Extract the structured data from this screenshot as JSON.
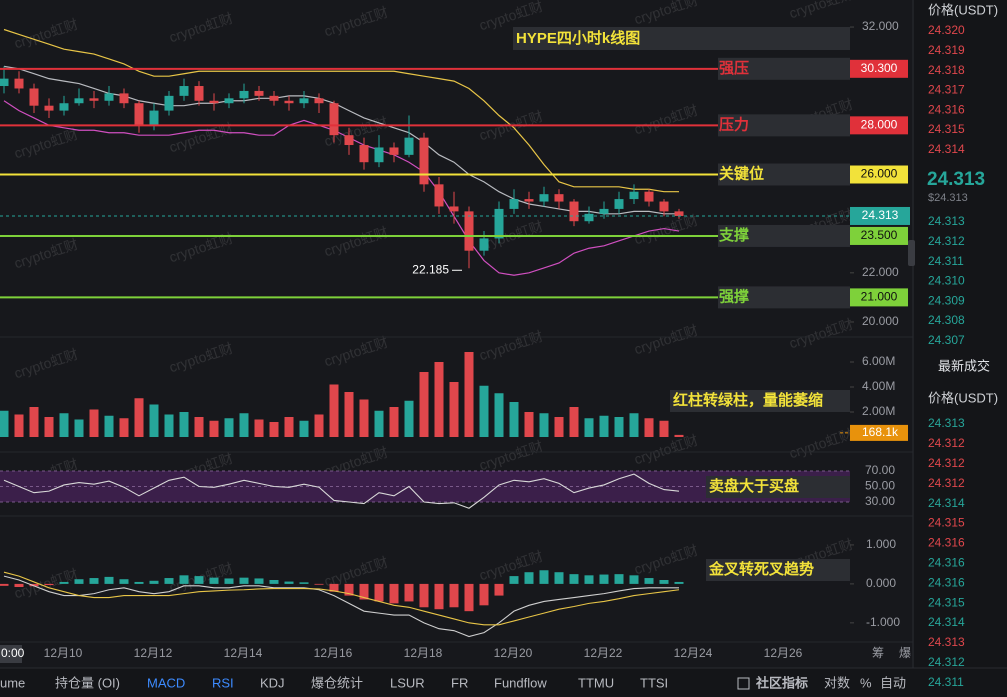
{
  "chart_data": [
    {
      "type": "candlestick",
      "title": "HYPE四小时k线图",
      "open": [
        29.6,
        29.9,
        29.5,
        28.8,
        28.6,
        28.9,
        29.1,
        29.0,
        29.3,
        28.9,
        28.0,
        28.6,
        29.2,
        29.6,
        29.0,
        28.9,
        29.1,
        29.4,
        29.2,
        29.0,
        28.9,
        29.1,
        28.9,
        27.6,
        27.2,
        26.5,
        27.1,
        26.8,
        27.5,
        25.6,
        24.7,
        24.5,
        22.9,
        23.4,
        24.6,
        25.0,
        24.9,
        25.2,
        24.9,
        24.1,
        24.4,
        24.6,
        25.0,
        25.3,
        24.9,
        24.5
      ],
      "high": [
        30.4,
        30.2,
        29.7,
        29.1,
        29.2,
        29.5,
        29.4,
        29.6,
        29.5,
        29.0,
        28.9,
        29.4,
        29.9,
        29.8,
        29.3,
        29.3,
        29.7,
        29.6,
        29.4,
        29.2,
        29.4,
        29.3,
        29.0,
        27.9,
        27.5,
        27.6,
        27.3,
        28.4,
        27.7,
        25.9,
        25.3,
        24.7,
        23.7,
        24.9,
        25.4,
        25.3,
        25.5,
        25.4,
        25.0,
        24.7,
        24.9,
        25.3,
        25.6,
        25.4,
        25.0,
        24.6
      ],
      "low": [
        29.3,
        29.3,
        28.5,
        28.3,
        28.4,
        28.8,
        28.7,
        28.8,
        28.7,
        27.7,
        27.8,
        28.4,
        29.0,
        28.8,
        28.6,
        28.7,
        28.9,
        29.0,
        28.8,
        28.6,
        28.7,
        28.5,
        27.3,
        26.8,
        26.2,
        26.3,
        26.5,
        26.7,
        25.3,
        24.4,
        24.0,
        22.185,
        22.7,
        23.2,
        24.4,
        24.6,
        24.7,
        24.6,
        23.9,
        24.0,
        24.2,
        24.4,
        24.8,
        24.7,
        24.3,
        24.2
      ],
      "close": [
        29.9,
        29.5,
        28.8,
        28.6,
        28.9,
        29.1,
        29.0,
        29.3,
        28.9,
        28.0,
        28.6,
        29.2,
        29.6,
        29.0,
        28.9,
        29.1,
        29.4,
        29.2,
        29.0,
        28.9,
        29.1,
        28.9,
        27.6,
        27.2,
        26.5,
        27.1,
        26.8,
        27.5,
        25.6,
        24.7,
        24.5,
        22.9,
        23.4,
        24.6,
        25.0,
        24.9,
        25.2,
        24.9,
        24.1,
        24.4,
        24.6,
        25.0,
        25.3,
        24.9,
        24.5,
        24.313
      ],
      "up_color": "#26a69a",
      "down_color": "#e0474c",
      "lines": [
        {
          "color": "#e8c547",
          "values": [
            31.9,
            31.7,
            31.5,
            31.3,
            31.1,
            31.0,
            30.9,
            30.7,
            30.5,
            30.2,
            30.0,
            30.0,
            30.1,
            30.2,
            30.2,
            30.2,
            30.2,
            30.2,
            30.2,
            30.2,
            30.2,
            30.2,
            30.2,
            30.2,
            30.2,
            30.2,
            30.2,
            30.1,
            30.0,
            29.9,
            29.8,
            29.5,
            29.0,
            28.4,
            27.9,
            27.2,
            26.4,
            25.7,
            25.5,
            25.5,
            25.5,
            25.5,
            25.4,
            25.4,
            25.3,
            25.3
          ]
        },
        {
          "color": "#b9bbc0",
          "values": [
            30.4,
            30.3,
            30.1,
            29.9,
            29.8,
            29.7,
            29.5,
            29.3,
            29.2,
            29.0,
            28.9,
            28.8,
            28.8,
            28.9,
            28.9,
            29.0,
            29.0,
            29.1,
            29.1,
            29.2,
            29.2,
            29.1,
            28.9,
            28.6,
            28.3,
            28.1,
            27.9,
            27.7,
            27.3,
            26.8,
            26.5,
            26.0,
            25.7,
            25.3,
            25.0,
            24.8,
            24.7,
            24.6,
            24.5,
            24.5,
            24.4,
            24.4,
            24.5,
            24.5,
            24.4,
            24.4
          ]
        },
        {
          "color": "#d04fc0",
          "values": [
            29.0,
            28.6,
            28.3,
            28.0,
            27.9,
            27.8,
            27.8,
            27.7,
            27.7,
            27.6,
            27.6,
            27.6,
            27.7,
            27.8,
            27.8,
            27.7,
            27.7,
            27.6,
            27.6,
            28.0,
            28.2,
            28.0,
            27.8,
            27.5,
            27.2,
            27.0,
            26.8,
            26.5,
            26.1,
            25.3,
            24.3,
            23.3,
            22.5,
            22.0,
            21.9,
            22.0,
            22.2,
            22.4,
            22.8,
            23.0,
            23.1,
            23.3,
            23.5,
            23.7,
            23.8,
            23.7
          ]
        }
      ],
      "ylim": [
        19.47,
        33.1
      ],
      "yticks": [
        {
          "value": 32,
          "label": "32.000"
        },
        {
          "value": 22,
          "label": "22.000"
        },
        {
          "value": 20,
          "label": "20.000"
        }
      ],
      "levels": [
        {
          "name": "强压",
          "value": 30.3,
          "label": "30.300",
          "color": "#e0313a"
        },
        {
          "name": "压力",
          "value": 28,
          "label": "28.000",
          "color": "#e0313a"
        },
        {
          "name": "关键位",
          "value": 26,
          "label": "26.000",
          "color": "#f2e23a"
        },
        {
          "name": "支撑",
          "value": 23.5,
          "label": "23.500",
          "color": "#7ed13a"
        },
        {
          "name": "强撑",
          "value": 21,
          "label": "21.000",
          "color": "#7ed13a"
        }
      ],
      "last_price": {
        "value": 24.313,
        "label": "24.313",
        "color": "#26a69a"
      },
      "low_annotation": {
        "value": 22.185,
        "label": "22.185"
      },
      "xticks": [
        "12月10",
        "12月12",
        "12月14",
        "12月16",
        "12月18",
        "12月20",
        "12月22",
        "12月24",
        "12月26"
      ]
    },
    {
      "type": "bar",
      "annotation": "红柱转绿柱，量能萎缩",
      "values": [
        2100000,
        1800000,
        2400000,
        1600000,
        1900000,
        1400000,
        2200000,
        1700000,
        1500000,
        3100000,
        2600000,
        1800000,
        2000000,
        1600000,
        1300000,
        1500000,
        1900000,
        1400000,
        1200000,
        1600000,
        1300000,
        1800000,
        4200000,
        3600000,
        3000000,
        2100000,
        2400000,
        2900000,
        5200000,
        6000000,
        4400000,
        6800000,
        4100000,
        3500000,
        2800000,
        2000000,
        1900000,
        1600000,
        2400000,
        1500000,
        1700000,
        1600000,
        1900000,
        1500000,
        1300000,
        168100
      ],
      "ylim": [
        0,
        7760000
      ],
      "yticks": [
        {
          "value": 6000000,
          "label": "6.00M"
        },
        {
          "value": 4000000,
          "label": "4.00M"
        },
        {
          "value": 2000000,
          "label": "2.00M"
        }
      ],
      "last": {
        "value": 168100,
        "label": "168.1k",
        "color": "#e8920c"
      }
    },
    {
      "type": "line",
      "annotation": "卖盘大于买盘",
      "color": "#d8d8d8",
      "values": [
        58,
        50,
        42,
        44,
        52,
        55,
        53,
        57,
        49,
        38,
        48,
        58,
        62,
        50,
        49,
        53,
        58,
        54,
        50,
        49,
        53,
        49,
        32,
        30,
        28,
        42,
        38,
        50,
        30,
        28,
        29,
        22,
        36,
        52,
        58,
        56,
        60,
        54,
        42,
        48,
        52,
        60,
        66,
        54,
        46,
        44
      ],
      "ylim": [
        19.7,
        77.7
      ],
      "yticks": [
        {
          "value": 70,
          "label": "70.00"
        },
        {
          "value": 50,
          "label": "50.00"
        },
        {
          "value": 30,
          "label": "30.00"
        }
      ],
      "band_color": "#3b1f4a"
    },
    {
      "type": "macd",
      "annotation": "金叉转死叉趋势",
      "values": [
        -0.05,
        -0.08,
        -0.06,
        -0.03,
        0.05,
        0.12,
        0.15,
        0.18,
        0.12,
        0.05,
        0.08,
        0.15,
        0.22,
        0.2,
        0.16,
        0.14,
        0.16,
        0.14,
        0.1,
        0.06,
        0.04,
        -0.02,
        -0.2,
        -0.3,
        -0.4,
        -0.45,
        -0.5,
        -0.45,
        -0.6,
        -0.65,
        -0.6,
        -0.7,
        -0.55,
        -0.3,
        0.2,
        0.3,
        0.35,
        0.3,
        0.25,
        0.22,
        0.24,
        0.25,
        0.22,
        0.15,
        0.1,
        0.05
      ],
      "series": [
        {
          "color": "#cfcfcf",
          "values": [
            0.2,
            0.1,
            -0.05,
            -0.2,
            -0.3,
            -0.3,
            -0.25,
            -0.15,
            -0.1,
            -0.2,
            -0.25,
            -0.2,
            -0.05,
            -0.05,
            -0.1,
            -0.1,
            -0.05,
            -0.05,
            -0.1,
            -0.1,
            -0.1,
            -0.15,
            -0.3,
            -0.5,
            -0.7,
            -0.75,
            -0.8,
            -0.8,
            -1.0,
            -1.15,
            -1.2,
            -1.35,
            -1.25,
            -1.0,
            -0.7,
            -0.55,
            -0.45,
            -0.4,
            -0.35,
            -0.3,
            -0.25,
            -0.18,
            -0.12,
            -0.1,
            -0.1,
            -0.1
          ]
        },
        {
          "color": "#e8c547",
          "values": [
            0.3,
            0.2,
            0.05,
            -0.1,
            -0.2,
            -0.3,
            -0.35,
            -0.35,
            -0.3,
            -0.3,
            -0.3,
            -0.3,
            -0.25,
            -0.2,
            -0.18,
            -0.16,
            -0.15,
            -0.13,
            -0.12,
            -0.12,
            -0.12,
            -0.13,
            -0.18,
            -0.25,
            -0.35,
            -0.45,
            -0.55,
            -0.6,
            -0.7,
            -0.8,
            -0.9,
            -1.0,
            -1.05,
            -1.05,
            -0.95,
            -0.85,
            -0.75,
            -0.65,
            -0.58,
            -0.5,
            -0.45,
            -0.38,
            -0.3,
            -0.25,
            -0.2,
            -0.15
          ]
        }
      ],
      "ylim": [
        -1.44,
        1.64
      ],
      "yticks": [
        {
          "value": 1,
          "label": "1.000"
        },
        {
          "value": 0,
          "label": "0.000"
        },
        {
          "value": -1,
          "label": "-1.000"
        }
      ]
    }
  ],
  "watermark": "crypto虹财",
  "axis_time": "0:00",
  "axis_right": [
    "筹",
    "爆"
  ],
  "sidebar": {
    "header": "价格(USDT)",
    "ask_color": "#e0474c",
    "bid_color": "#26a69a",
    "asks": [
      "24.320",
      "24.319",
      "24.318",
      "24.317",
      "24.316",
      "24.315",
      "24.314"
    ],
    "price": "24.313",
    "price_usd": "$24.313",
    "bids": [
      "24.313",
      "24.312",
      "24.311",
      "24.310",
      "24.309",
      "24.308",
      "24.307"
    ],
    "trades_title": "最新成交",
    "trades_header": "价格(USDT)",
    "trades": [
      {
        "price": "24.313",
        "color": "#26a69a"
      },
      {
        "price": "24.312",
        "color": "#e0474c"
      },
      {
        "price": "24.312",
        "color": "#e0474c"
      },
      {
        "price": "24.312",
        "color": "#e0474c"
      },
      {
        "price": "24.314",
        "color": "#26a69a"
      },
      {
        "price": "24.315",
        "color": "#e0474c"
      },
      {
        "price": "24.316",
        "color": "#e0474c"
      },
      {
        "price": "24.316",
        "color": "#26a69a"
      },
      {
        "price": "24.316",
        "color": "#26a69a"
      },
      {
        "price": "24.315",
        "color": "#26a69a"
      },
      {
        "price": "24.314",
        "color": "#26a69a"
      },
      {
        "price": "24.313",
        "color": "#e0474c"
      },
      {
        "price": "24.312",
        "color": "#26a69a"
      },
      {
        "price": "24.311",
        "color": "#26a69a"
      }
    ]
  },
  "toolbar": {
    "items": [
      {
        "label": "ume",
        "active": false
      },
      {
        "label": "持仓量 (OI)",
        "active": false
      },
      {
        "label": "MACD",
        "active": true
      },
      {
        "label": "RSI",
        "active": true
      },
      {
        "label": "KDJ",
        "active": false
      },
      {
        "label": "爆仓统计",
        "active": false
      },
      {
        "label": "LSUR",
        "active": false
      },
      {
        "label": "FR",
        "active": false
      },
      {
        "label": "Fundflow",
        "active": false
      },
      {
        "label": "TTMU",
        "active": false
      },
      {
        "label": "TTSI",
        "active": false
      }
    ],
    "right": [
      "社区指标",
      "对数",
      "%",
      "自动"
    ]
  }
}
